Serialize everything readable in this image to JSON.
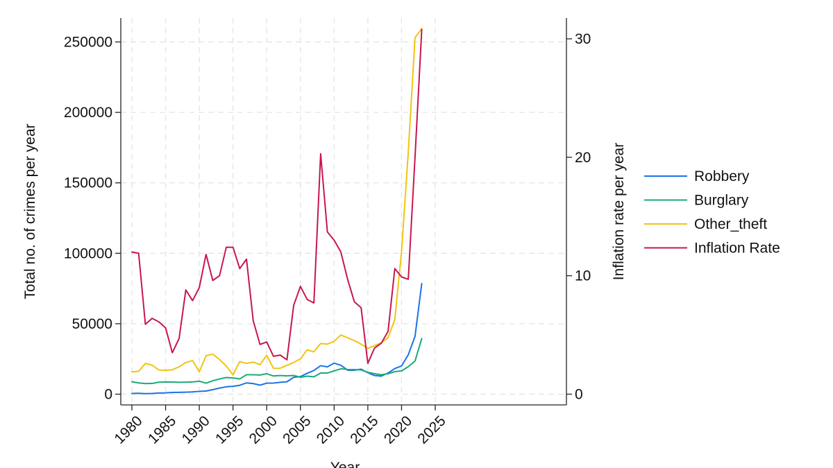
{
  "chart_data": {
    "type": "line",
    "title": "",
    "xlabel": "Year",
    "ylabel_left": "Total no. of crimes per year",
    "ylabel_right": "Inflation rate per year",
    "xlim": [
      1980,
      2025
    ],
    "ylim_left": [
      0,
      260000
    ],
    "ylim_right": [
      0,
      31
    ],
    "x_ticks": [
      "1980",
      "1985",
      "1990",
      "1995",
      "2000",
      "2005",
      "2010",
      "2015",
      "2020",
      "2025"
    ],
    "y_left_ticks": [
      "0",
      "50000",
      "100000",
      "150000",
      "200000",
      "250000"
    ],
    "y_right_ticks": [
      "0",
      "10",
      "20",
      "30"
    ],
    "grid": true,
    "legend_position": "right",
    "x": [
      1980,
      1981,
      1982,
      1983,
      1984,
      1985,
      1986,
      1987,
      1988,
      1989,
      1990,
      1991,
      1992,
      1993,
      1994,
      1995,
      1996,
      1997,
      1998,
      1999,
      2000,
      2001,
      2002,
      2003,
      2004,
      2005,
      2006,
      2007,
      2008,
      2009,
      2010,
      2011,
      2012,
      2013,
      2014,
      2015,
      2016,
      2017,
      2018,
      2019,
      2020,
      2021,
      2022,
      2023
    ],
    "series": [
      {
        "name": "Robbery",
        "axis": "left",
        "color": "#1a73e8",
        "values": [
          500,
          600,
          400,
          500,
          800,
          900,
          1200,
          1300,
          1400,
          1600,
          2000,
          2200,
          3200,
          4300,
          5200,
          5600,
          6300,
          8000,
          7500,
          6400,
          7800,
          7900,
          8400,
          8800,
          12000,
          12500,
          14800,
          16800,
          20200,
          19400,
          22000,
          20500,
          17000,
          17000,
          17800,
          15200,
          13200,
          12800,
          15000,
          18200,
          20000,
          28000,
          41000,
          78500
        ]
      },
      {
        "name": "Burglary",
        "axis": "left",
        "color": "#17ab74",
        "values": [
          8800,
          8000,
          7500,
          7600,
          8500,
          8700,
          8600,
          8400,
          8500,
          8700,
          9200,
          7800,
          9500,
          10800,
          11800,
          11500,
          10800,
          13800,
          13800,
          13600,
          14500,
          12900,
          13200,
          13000,
          13300,
          12000,
          12800,
          12300,
          15000,
          15000,
          16500,
          18000,
          17500,
          17500,
          17200,
          15500,
          14500,
          13800,
          14500,
          16000,
          16500,
          19500,
          23500,
          39500
        ]
      },
      {
        "name": "Other_theft",
        "axis": "left",
        "color": "#f2c40f",
        "values": [
          15800,
          16200,
          21800,
          20600,
          17100,
          17000,
          17300,
          19400,
          22500,
          23800,
          15900,
          27300,
          28400,
          24600,
          20000,
          13600,
          23200,
          21800,
          22800,
          20900,
          27600,
          18300,
          18400,
          20500,
          22500,
          25000,
          31500,
          30000,
          36000,
          35500,
          37500,
          42000,
          40000,
          38000,
          35500,
          32500,
          34500,
          36500,
          40000,
          53000,
          101000,
          172000,
          253000,
          259500
        ]
      },
      {
        "name": "Inflation Rate",
        "axis": "right",
        "color": "#c8164c",
        "values": [
          12.0,
          11.9,
          5.9,
          6.4,
          6.1,
          5.6,
          3.5,
          4.7,
          8.8,
          7.9,
          9.0,
          11.8,
          9.6,
          10.0,
          12.4,
          12.4,
          10.6,
          11.4,
          6.2,
          4.2,
          4.4,
          3.2,
          3.3,
          2.9,
          7.5,
          9.1,
          8.0,
          7.7,
          20.3,
          13.7,
          13.0,
          12.0,
          9.7,
          7.8,
          7.3,
          2.6,
          3.9,
          4.3,
          5.3,
          10.6,
          9.9,
          9.7,
          20.0,
          30.8
        ]
      }
    ]
  }
}
